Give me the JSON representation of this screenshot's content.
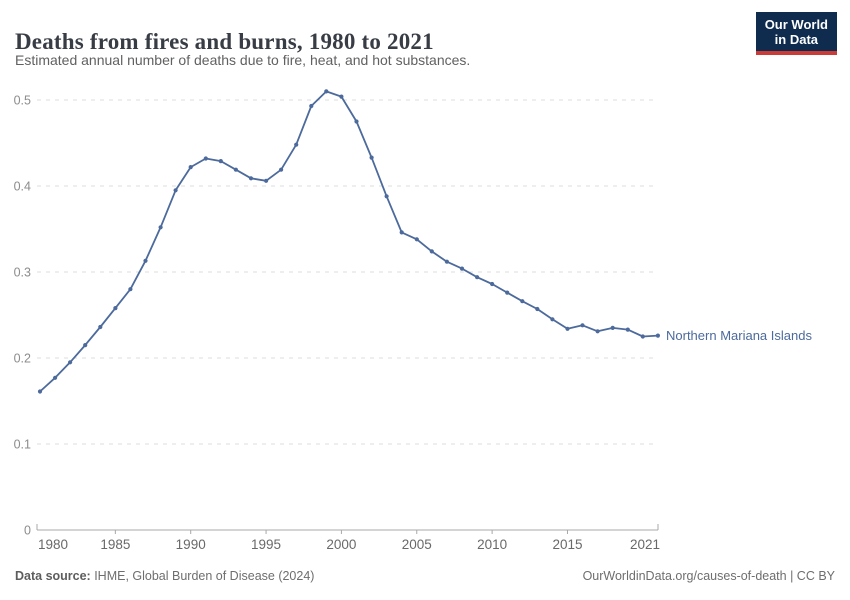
{
  "header": {
    "title": "Deaths from fires and burns, 1980 to 2021",
    "subtitle": "Estimated annual number of deaths due to fire, heat, and hot substances.",
    "logo_line1": "Our World",
    "logo_line2": "in Data"
  },
  "chart_data": {
    "type": "line",
    "title": "Deaths from fires and burns, 1980 to 2021",
    "x": [
      1980,
      1981,
      1982,
      1983,
      1984,
      1985,
      1986,
      1987,
      1988,
      1989,
      1990,
      1991,
      1992,
      1993,
      1994,
      1995,
      1996,
      1997,
      1998,
      1999,
      2000,
      2001,
      2002,
      2003,
      2004,
      2005,
      2006,
      2007,
      2008,
      2009,
      2010,
      2011,
      2012,
      2013,
      2014,
      2015,
      2016,
      2017,
      2018,
      2019,
      2020,
      2021
    ],
    "series": [
      {
        "name": "Northern Mariana Islands",
        "color": "#4c6a9c",
        "values": [
          0.161,
          0.177,
          0.195,
          0.215,
          0.236,
          0.258,
          0.28,
          0.313,
          0.352,
          0.395,
          0.422,
          0.432,
          0.429,
          0.419,
          0.409,
          0.406,
          0.419,
          0.448,
          0.493,
          0.51,
          0.504,
          0.475,
          0.433,
          0.388,
          0.346,
          0.338,
          0.324,
          0.312,
          0.304,
          0.294,
          0.286,
          0.276,
          0.266,
          0.257,
          0.245,
          0.234,
          0.238,
          0.231,
          0.235,
          0.233,
          0.225,
          0.226
        ]
      }
    ],
    "xlabel": "",
    "ylabel": "",
    "xlim": [
      1980,
      2021
    ],
    "ylim": [
      0,
      0.5
    ],
    "x_tick_labels": [
      "1980",
      "1985",
      "1990",
      "1995",
      "2000",
      "2005",
      "2010",
      "2015",
      "2021"
    ],
    "y_tick_labels": [
      "0",
      "0.1",
      "0.2",
      "0.3",
      "0.4",
      "0.5"
    ],
    "grid": "horizontal-dashed",
    "legend_position": "end-of-line-label"
  },
  "footer": {
    "source_label": "Data source:",
    "source_text": " IHME, Global Burden of Disease (2024)",
    "right_text": "OurWorldinData.org/causes-of-death | CC BY"
  },
  "colors": {
    "line": "#4c6a9c",
    "grid": "#dcdcdc",
    "axis": "#a8a8a8",
    "y_tick_text": "#8c8c8c",
    "x_tick_text": "#696969",
    "logo_bg": "#0f2c4f",
    "logo_red": "#cb3b38",
    "title_text": "#383d45",
    "subtitle_text": "#616161"
  }
}
